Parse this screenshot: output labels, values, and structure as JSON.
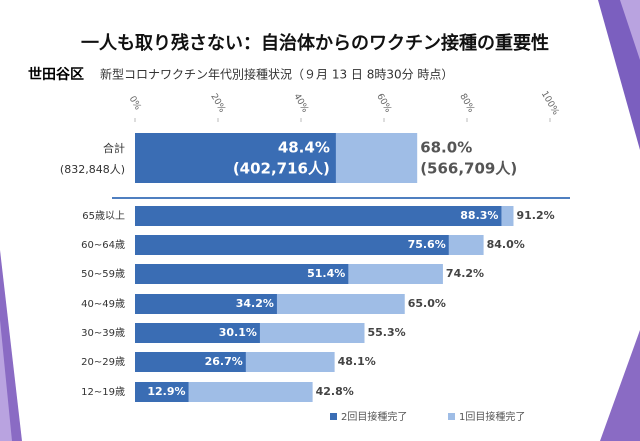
{
  "chart_data": {
    "type": "bar",
    "orientation": "horizontal",
    "title": "一人も取り残さない：自治体からのワクチン接種の重要性",
    "region": "世田谷区",
    "subtitle": "新型コロナワクチン年代別接種状況（９月 13 日 8時30分 時点）",
    "categories": [
      "合計",
      "65歳以上",
      "60~64歳",
      "50~59歳",
      "40~49歳",
      "30~39歳",
      "20~29歳",
      "12~19歳"
    ],
    "total_notes": {
      "population": "(832,848人)",
      "second_dose_count": "(402,716人)",
      "first_dose_count": "(566,709人)"
    },
    "xlim": [
      0,
      100
    ],
    "xticks": [
      {
        "value": 0,
        "label": "0%"
      },
      {
        "value": 20,
        "label": "20%"
      },
      {
        "value": 40,
        "label": "40%"
      },
      {
        "value": 60,
        "label": "60%"
      },
      {
        "value": 80,
        "label": "80%"
      },
      {
        "value": 100,
        "label": "100%"
      }
    ],
    "series": [
      {
        "name": "1回目接種完了",
        "color": "#9fbde6",
        "values": [
          68.0,
          91.2,
          84.0,
          74.2,
          65.0,
          55.3,
          48.1,
          42.8
        ],
        "value_labels": [
          "68.0%",
          "91.2%",
          "84.0%",
          "74.2%",
          "65.0%",
          "55.3%",
          "48.1%",
          "42.8%"
        ]
      },
      {
        "name": "2回目接種完了",
        "color": "#3a6db4",
        "values": [
          48.4,
          88.3,
          75.6,
          51.4,
          34.2,
          30.1,
          26.7,
          12.9
        ],
        "value_labels": [
          "48.4%",
          "88.3%",
          "75.6%",
          "51.4%",
          "34.2%",
          "30.1%",
          "26.7%",
          "12.9%"
        ]
      }
    ],
    "legend": "bottom-right"
  }
}
